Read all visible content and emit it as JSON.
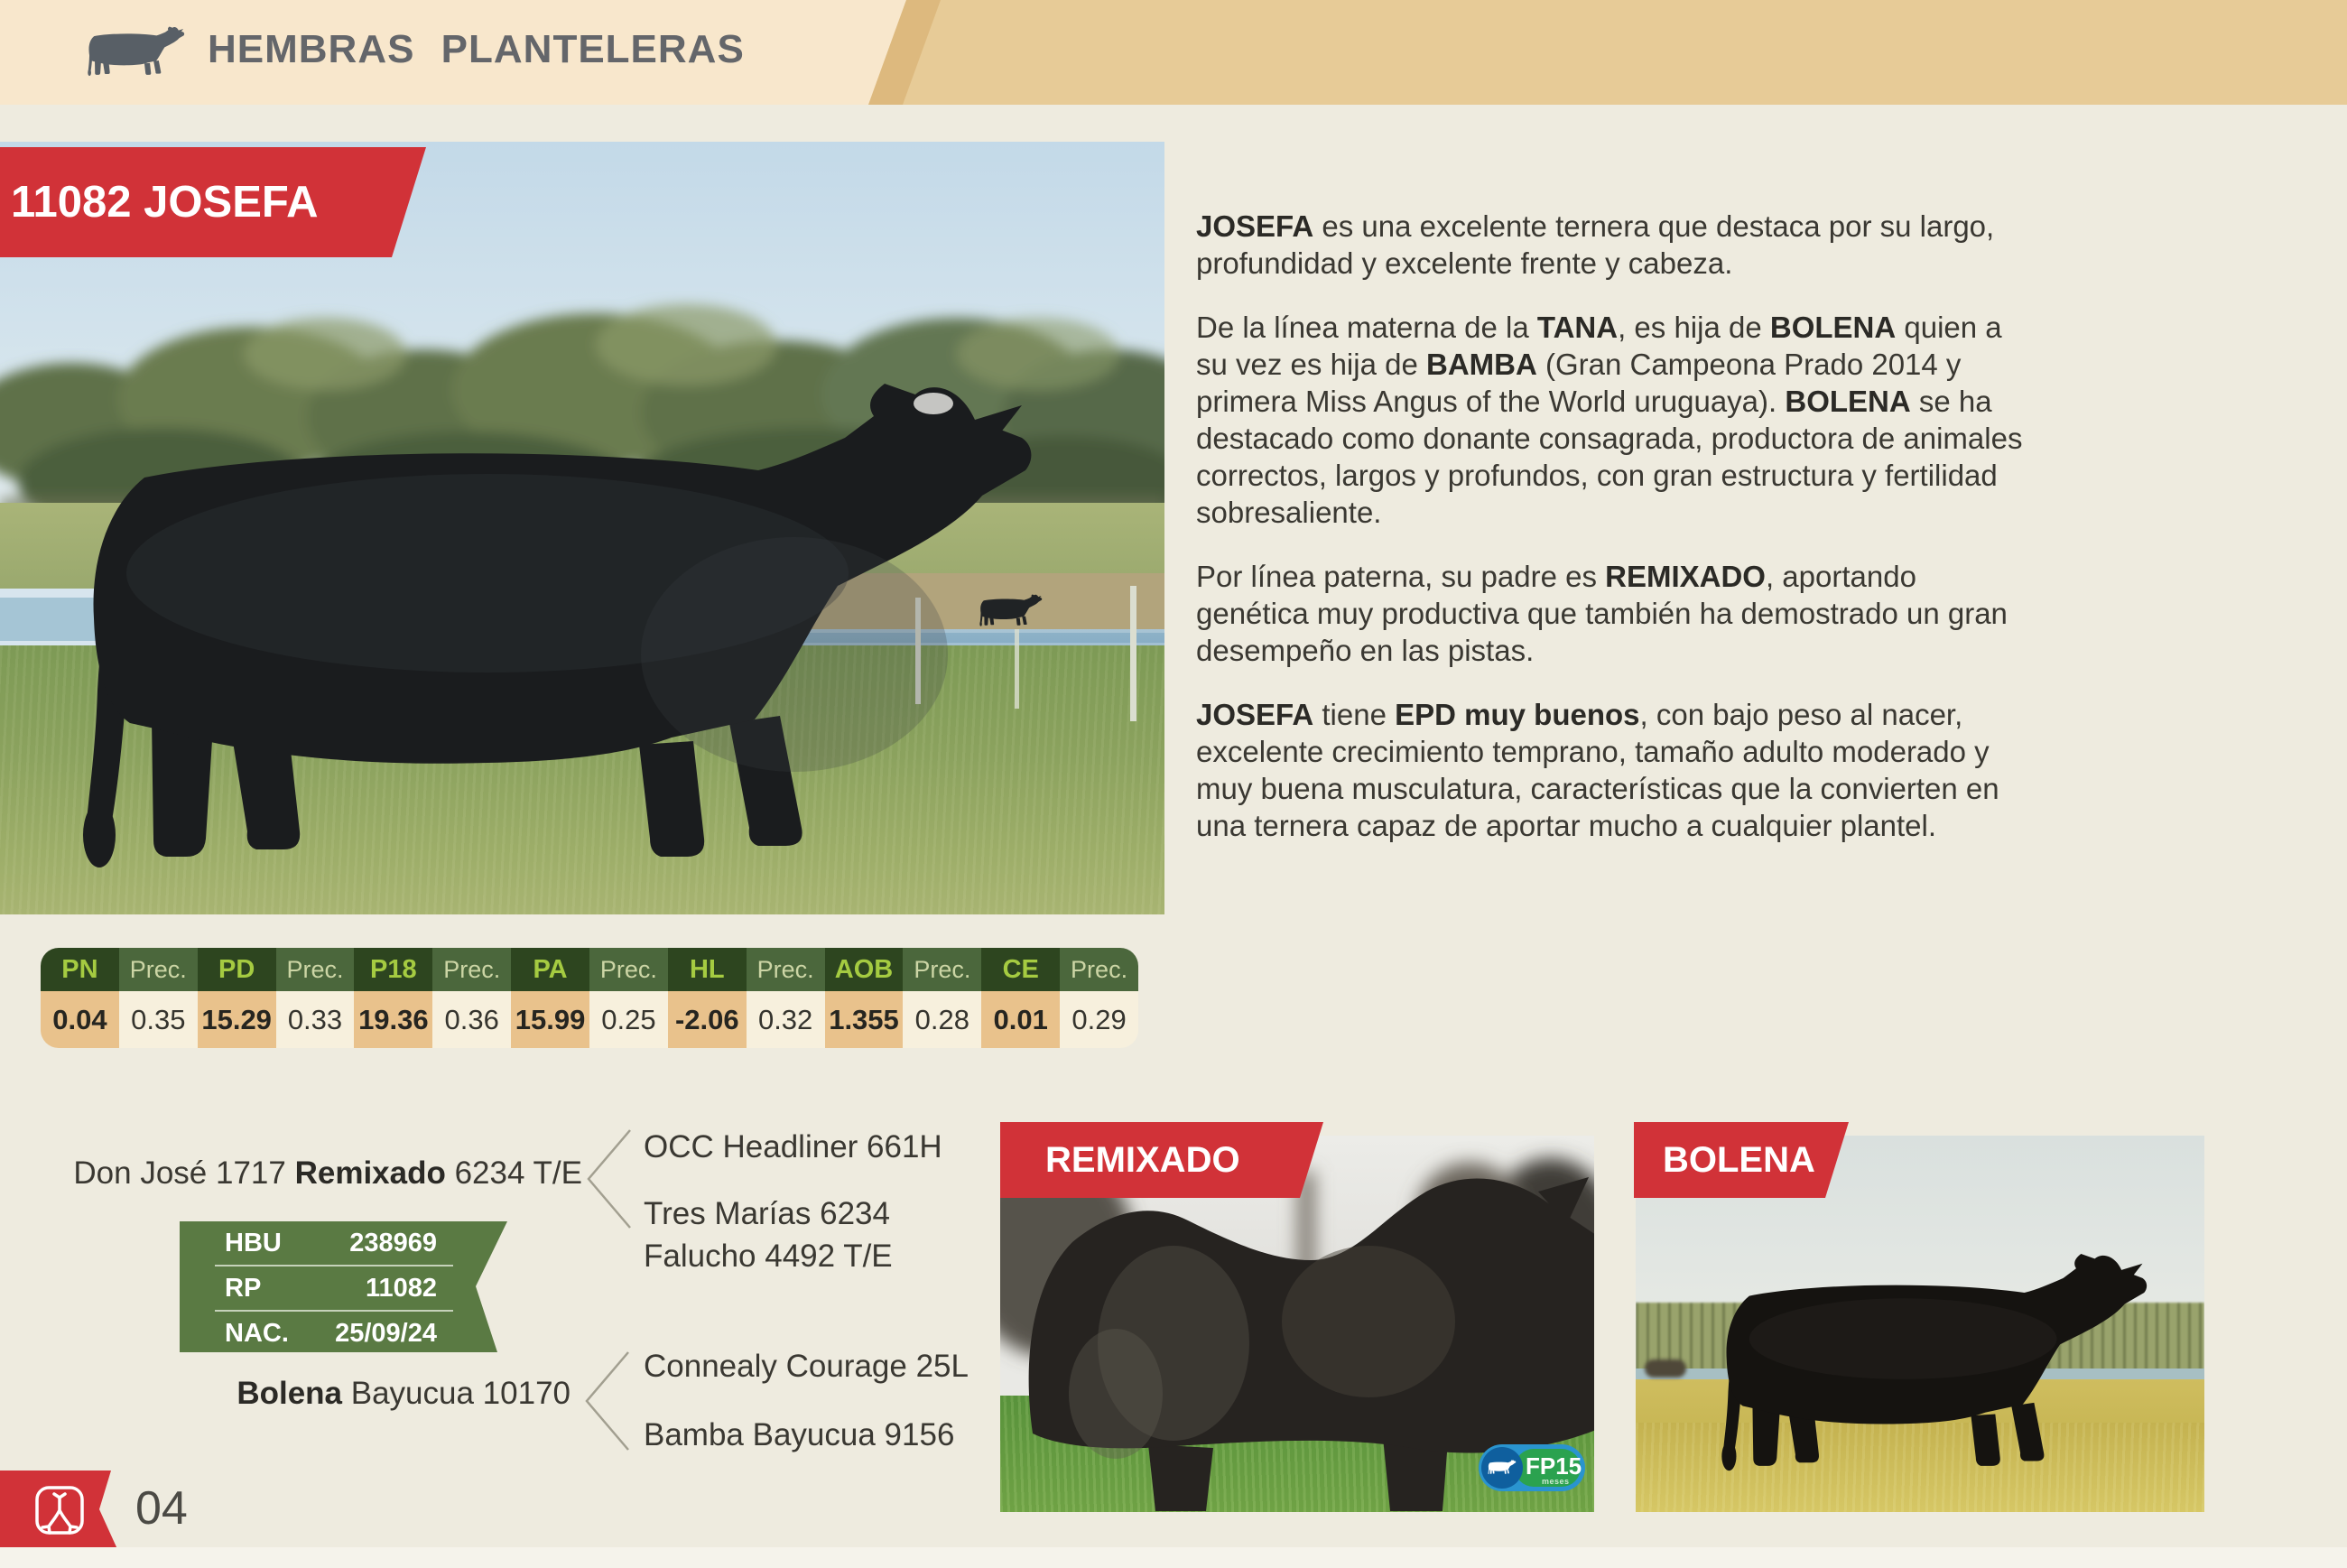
{
  "header": {
    "title": "HEMBRAS PLANTELERAS"
  },
  "animal": {
    "tag": "11082 JOSEFA"
  },
  "description": {
    "paragraphs": [
      [
        {
          "t": "JOSEFA",
          "b": true
        },
        {
          "t": " es una excelente ternera que destaca por su largo, profundidad y excelente frente y cabeza.",
          "b": false
        }
      ],
      [
        {
          "t": "De la línea materna de la ",
          "b": false
        },
        {
          "t": "TANA",
          "b": true
        },
        {
          "t": ", es hija de ",
          "b": false
        },
        {
          "t": "BOLENA",
          "b": true
        },
        {
          "t": " quien a su vez es hija de ",
          "b": false
        },
        {
          "t": "BAMBA",
          "b": true
        },
        {
          "t": " (Gran Campeona Prado 2014 y primera Miss Angus of the World uruguaya). ",
          "b": false
        },
        {
          "t": "BOLENA",
          "b": true
        },
        {
          "t": " se ha destacado como donante consagrada, productora de animales correctos, largos y profundos, con gran estructura y fertilidad sobresaliente.",
          "b": false
        }
      ],
      [
        {
          "t": "Por línea paterna, su padre es ",
          "b": false
        },
        {
          "t": "REMIXADO",
          "b": true
        },
        {
          "t": ", aportando genética muy productiva que también ha demostrado un gran desempeño en las pistas.",
          "b": false
        }
      ],
      [
        {
          "t": "JOSEFA",
          "b": true
        },
        {
          "t": " tiene ",
          "b": false
        },
        {
          "t": "EPD muy buenos",
          "b": true
        },
        {
          "t": ", con bajo peso al nacer, excelente crecimiento temprano, tamaño adulto moderado y muy buena musculatura, características que la convierten en una ternera capaz de aportar mucho a cualquier plantel.",
          "b": false
        }
      ]
    ]
  },
  "epd": {
    "columns": [
      {
        "h": "PN",
        "v": "0.04",
        "main": true
      },
      {
        "h": "Prec.",
        "v": "0.35",
        "main": false
      },
      {
        "h": "PD",
        "v": "15.29",
        "main": true
      },
      {
        "h": "Prec.",
        "v": "0.33",
        "main": false
      },
      {
        "h": "P18",
        "v": "19.36",
        "main": true
      },
      {
        "h": "Prec.",
        "v": "0.36",
        "main": false
      },
      {
        "h": "PA",
        "v": "15.99",
        "main": true
      },
      {
        "h": "Prec.",
        "v": "0.25",
        "main": false
      },
      {
        "h": "HL",
        "v": "-2.06",
        "main": true
      },
      {
        "h": "Prec.",
        "v": "0.32",
        "main": false
      },
      {
        "h": "AOB",
        "v": "1.355",
        "main": true
      },
      {
        "h": "Prec.",
        "v": "0.28",
        "main": false
      },
      {
        "h": "CE",
        "v": "0.01",
        "main": true
      },
      {
        "h": "Prec.",
        "v": "0.29",
        "main": false
      }
    ]
  },
  "id_box": {
    "rows": [
      {
        "label": "HBU",
        "value": "238969"
      },
      {
        "label": "RP",
        "value": "11082"
      },
      {
        "label": "NAC.",
        "value": "25/09/24"
      }
    ]
  },
  "pedigree": {
    "sire_line": [
      {
        "t": "Don José 1717 ",
        "b": false
      },
      {
        "t": "Remixado",
        "b": true
      },
      {
        "t": " 6234 T/E",
        "b": false
      }
    ],
    "sire_sire": "OCC Headliner 661H",
    "sire_dam_line1": "Tres Marías 6234",
    "sire_dam_line2": "Falucho 4492 T/E",
    "dam_line": [
      {
        "t": "Bolena",
        "b": true
      },
      {
        "t": " Bayucua 10170",
        "b": false
      }
    ],
    "dam_sire": "Connealy Courage 25L",
    "dam_dam": "Bamba Bayucua 9156"
  },
  "photos": {
    "sire_label": "REMIXADO",
    "dam_label": "BOLENA",
    "badge_text": "FP15",
    "badge_sub": "meses"
  },
  "footer": {
    "page": "04"
  },
  "colors": {
    "accent_red": "#d13238",
    "box_green": "#5a7a43",
    "table_header_green": "#2d451f",
    "table_prec_green": "#4b673c",
    "table_value_tan": "#e9c28c",
    "header_tan": "#e7cb97",
    "header_cream": "#f8e7cc"
  }
}
